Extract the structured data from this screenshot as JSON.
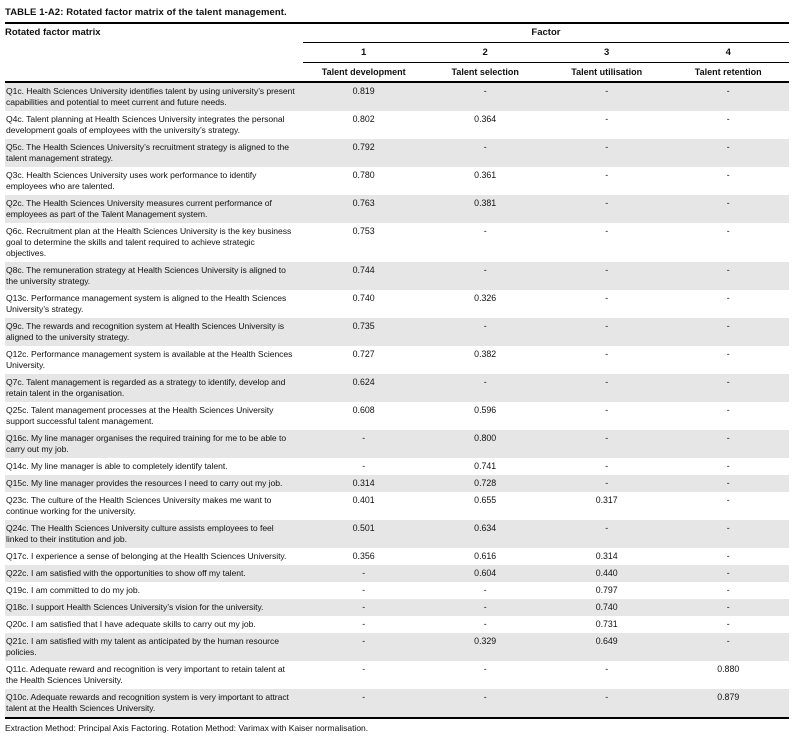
{
  "title": "TABLE 1-A2: Rotated factor matrix of the talent management.",
  "header": {
    "left_label": "Rotated factor matrix",
    "group_label": "Factor",
    "factor_numbers": [
      "1",
      "2",
      "3",
      "4"
    ],
    "factor_names": [
      "Talent development",
      "Talent selection",
      "Talent utilisation",
      "Talent retention"
    ]
  },
  "rows": [
    {
      "question": "Q1c. Health Sciences University identifies talent by using university’s present capabilities and potential to meet current and future needs.",
      "values": [
        "0.819",
        "-",
        "-",
        "-"
      ]
    },
    {
      "question": "Q4c. Talent planning at Health Sciences University integrates the personal development goals of employees with the university’s strategy.",
      "values": [
        "0.802",
        "0.364",
        "-",
        "-"
      ]
    },
    {
      "question": "Q5c. The Health Sciences University’s recruitment strategy is aligned to the talent management strategy.",
      "values": [
        "0.792",
        "-",
        "-",
        "-"
      ]
    },
    {
      "question": "Q3c. Health Sciences University uses work performance to identify employees who are talented.",
      "values": [
        "0.780",
        "0.361",
        "-",
        "-"
      ]
    },
    {
      "question": "Q2c. The Health Sciences University measures current performance of employees as part of the Talent Management system.",
      "values": [
        "0.763",
        "0.381",
        "-",
        "-"
      ]
    },
    {
      "question": "Q6c. Recruitment plan at the Health Sciences University is the key business goal to determine the skills and talent required to achieve strategic objectives.",
      "values": [
        "0.753",
        "-",
        "-",
        "-"
      ]
    },
    {
      "question": "Q8c. The remuneration strategy at Health Sciences University is aligned to the university strategy.",
      "values": [
        "0.744",
        "-",
        "-",
        "-"
      ]
    },
    {
      "question": "Q13c. Performance management system is aligned to the Health Sciences University’s strategy.",
      "values": [
        "0.740",
        "0.326",
        "-",
        "-"
      ]
    },
    {
      "question": "Q9c. The rewards and recognition system at Health Sciences University is aligned to the university strategy.",
      "values": [
        "0.735",
        "-",
        "-",
        "-"
      ]
    },
    {
      "question": "Q12c. Performance management system is available at the Health Sciences University.",
      "values": [
        "0.727",
        "0.382",
        "-",
        "-"
      ]
    },
    {
      "question": "Q7c. Talent management is regarded as a strategy to identify, develop and retain talent in the organisation.",
      "values": [
        "0.624",
        "-",
        "-",
        "-"
      ]
    },
    {
      "question": "Q25c. Talent management processes at the Health Sciences University support successful talent management.",
      "values": [
        "0.608",
        "0.596",
        "-",
        "-"
      ]
    },
    {
      "question": "Q16c. My line manager organises the required training for me to be able to carry out my job.",
      "values": [
        "-",
        "0.800",
        "-",
        "-"
      ]
    },
    {
      "question": "Q14c. My line manager is able to completely identify talent.",
      "values": [
        "-",
        "0.741",
        "-",
        "-"
      ]
    },
    {
      "question": "Q15c. My line manager provides the resources I need to carry out my job.",
      "values": [
        "0.314",
        "0.728",
        "-",
        "-"
      ]
    },
    {
      "question": "Q23c. The culture of the Health Sciences University makes me want to continue working for the university.",
      "values": [
        "0.401",
        "0.655",
        "0.317",
        "-"
      ]
    },
    {
      "question": "Q24c. The Health Sciences University culture assists employees to feel linked to their institution and job.",
      "values": [
        "0.501",
        "0.634",
        "-",
        "-"
      ]
    },
    {
      "question": "Q17c. I experience a sense of belonging at the Health Sciences University.",
      "values": [
        "0.356",
        "0.616",
        "0.314",
        "-"
      ]
    },
    {
      "question": "Q22c. I am satisfied with the opportunities to show off my talent.",
      "values": [
        "-",
        "0.604",
        "0.440",
        "-"
      ]
    },
    {
      "question": "Q19c. I am committed to do my job.",
      "values": [
        "-",
        "-",
        "0.797",
        "-"
      ]
    },
    {
      "question": "Q18c. I support Health Sciences University’s vision for the university.",
      "values": [
        "-",
        "-",
        "0.740",
        "-"
      ]
    },
    {
      "question": "Q20c. I am satisfied that I have adequate skills to carry out my job.",
      "values": [
        "-",
        "-",
        "0.731",
        "-"
      ]
    },
    {
      "question": "Q21c. I am satisfied with my talent as anticipated by the human resource policies.",
      "values": [
        "-",
        "0.329",
        "0.649",
        "-"
      ]
    },
    {
      "question": "Q11c. Adequate reward and recognition is very important to retain talent at the Health Sciences University.",
      "values": [
        "-",
        "-",
        "-",
        "0.880"
      ]
    },
    {
      "question": "Q10c. Adequate rewards and recognition system is very important to attract talent at the Health Sciences University.",
      "values": [
        "-",
        "-",
        "-",
        "0.879"
      ]
    }
  ],
  "footnote": "Extraction Method: Principal Axis Factoring. Rotation Method: Varimax with Kaiser normalisation.",
  "colors": {
    "row_shade": "#e6e6e6",
    "rule": "#000000",
    "text": "#111111"
  }
}
